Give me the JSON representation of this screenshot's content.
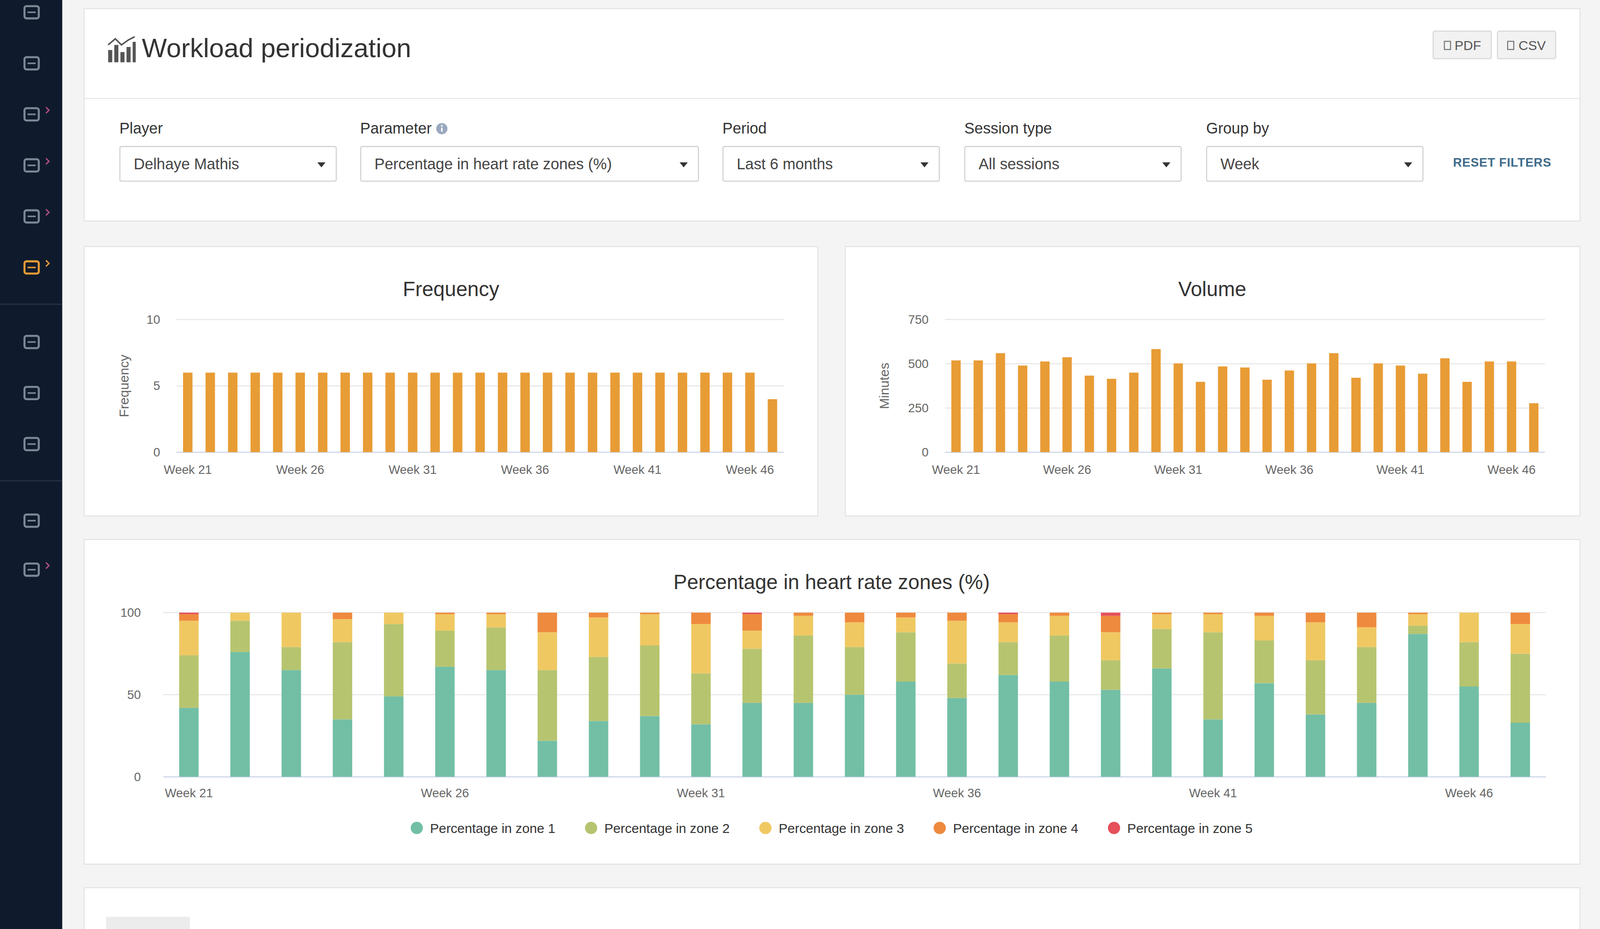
{
  "page": {
    "header": {
      "title": "Workload periodization",
      "buttons": [
        "PDF",
        "CSV"
      ]
    },
    "filters": [
      {
        "label": "Player",
        "value": "Delhaye Mathis"
      },
      {
        "label": "Parameter",
        "value": "Percentage in heart rate zones (%)"
      },
      {
        "label": "Period",
        "value": "Last 6 months"
      },
      {
        "label": "Session type",
        "value": "All sessions"
      },
      {
        "label": "Group by",
        "value": "Week"
      }
    ],
    "reset": "RESET FILTERS"
  },
  "chart_data": [
    {
      "type": "bar",
      "title": "Frequency",
      "ylabel": "Frequency",
      "categories": [
        "Week 21",
        null,
        null,
        null,
        null,
        "Week 26",
        null,
        null,
        null,
        null,
        "Week 31",
        null,
        null,
        null,
        null,
        "Week 36",
        null,
        null,
        null,
        null,
        "Week 41",
        null,
        null,
        null,
        null,
        "Week 46",
        null
      ],
      "values": [
        6,
        6,
        6,
        6,
        6,
        6,
        6,
        6,
        6,
        6,
        6,
        6,
        6,
        6,
        6,
        6,
        6,
        6,
        6,
        6,
        6,
        6,
        6,
        6,
        6,
        6,
        4
      ],
      "color": "#e89c35",
      "ylim": [
        0,
        10
      ],
      "yticks": [
        0,
        5,
        10
      ],
      "grid": true
    },
    {
      "type": "bar",
      "title": "Volume",
      "ylabel": "Minutes",
      "categories": [
        "Week 21",
        null,
        null,
        null,
        null,
        "Week 26",
        null,
        null,
        null,
        null,
        "Week 31",
        null,
        null,
        null,
        null,
        "Week 36",
        null,
        null,
        null,
        null,
        "Week 41",
        null,
        null,
        null,
        null,
        "Week 46",
        null
      ],
      "values": [
        519,
        519,
        560,
        490,
        513,
        537,
        433,
        415,
        450,
        583,
        502,
        398,
        485,
        479,
        410,
        462,
        502,
        560,
        421,
        502,
        490,
        444,
        531,
        398,
        513,
        513,
        277
      ],
      "color": "#e89c35",
      "ylim": [
        0,
        750
      ],
      "yticks": [
        0,
        250,
        500,
        750
      ],
      "grid": true
    },
    {
      "type": "bar",
      "title": "Percentage in heart rate zones (%)",
      "stacked": true,
      "legend": "bottom",
      "grid": true,
      "ylim": [
        0,
        100
      ],
      "yticks": [
        0,
        50,
        100
      ],
      "categories": [
        "Week 21",
        null,
        null,
        null,
        null,
        "Week 26",
        null,
        null,
        null,
        null,
        "Week 31",
        null,
        null,
        null,
        null,
        "Week 36",
        null,
        null,
        null,
        null,
        "Week 41",
        null,
        null,
        null,
        null,
        "Week 46",
        null
      ],
      "series": [
        {
          "name": "Percentage in zone 1",
          "color": "#72bfa6",
          "values": [
            42,
            76,
            65,
            35,
            49,
            67,
            65,
            22,
            34,
            37,
            32,
            45,
            45,
            50,
            58,
            48,
            62,
            58,
            53,
            66,
            35,
            57,
            38,
            45,
            87,
            55,
            33
          ]
        },
        {
          "name": "Percentage in zone 2",
          "color": "#b7c46f",
          "values": [
            32,
            19,
            14,
            47,
            44,
            22,
            26,
            43,
            39,
            43,
            31,
            33,
            41,
            29,
            30,
            21,
            20,
            28,
            18,
            24,
            53,
            26,
            33,
            34,
            5,
            27,
            42
          ]
        },
        {
          "name": "Percentage in zone 3",
          "color": "#f0c862",
          "values": [
            21,
            5,
            21,
            14,
            7,
            10,
            8,
            23,
            24,
            19,
            30,
            11,
            12,
            15,
            9,
            26,
            12,
            12,
            17,
            9,
            11,
            15,
            23,
            12,
            7,
            18,
            18
          ]
        },
        {
          "name": "Percentage in zone 4",
          "color": "#ee8a3e",
          "values": [
            4,
            0,
            0,
            4,
            0,
            1,
            1,
            12,
            3,
            1,
            7,
            10,
            2,
            6,
            3,
            5,
            5,
            2,
            10,
            1,
            1,
            2,
            6,
            9,
            1,
            0,
            7
          ]
        },
        {
          "name": "Percentage in zone 5",
          "color": "#e5505a",
          "values": [
            1,
            0,
            0,
            0,
            0,
            0,
            0,
            0,
            0,
            0,
            0,
            1,
            0,
            0,
            0,
            0,
            1,
            0,
            2,
            0,
            0,
            0,
            0,
            0,
            0,
            0,
            0
          ]
        }
      ]
    }
  ]
}
